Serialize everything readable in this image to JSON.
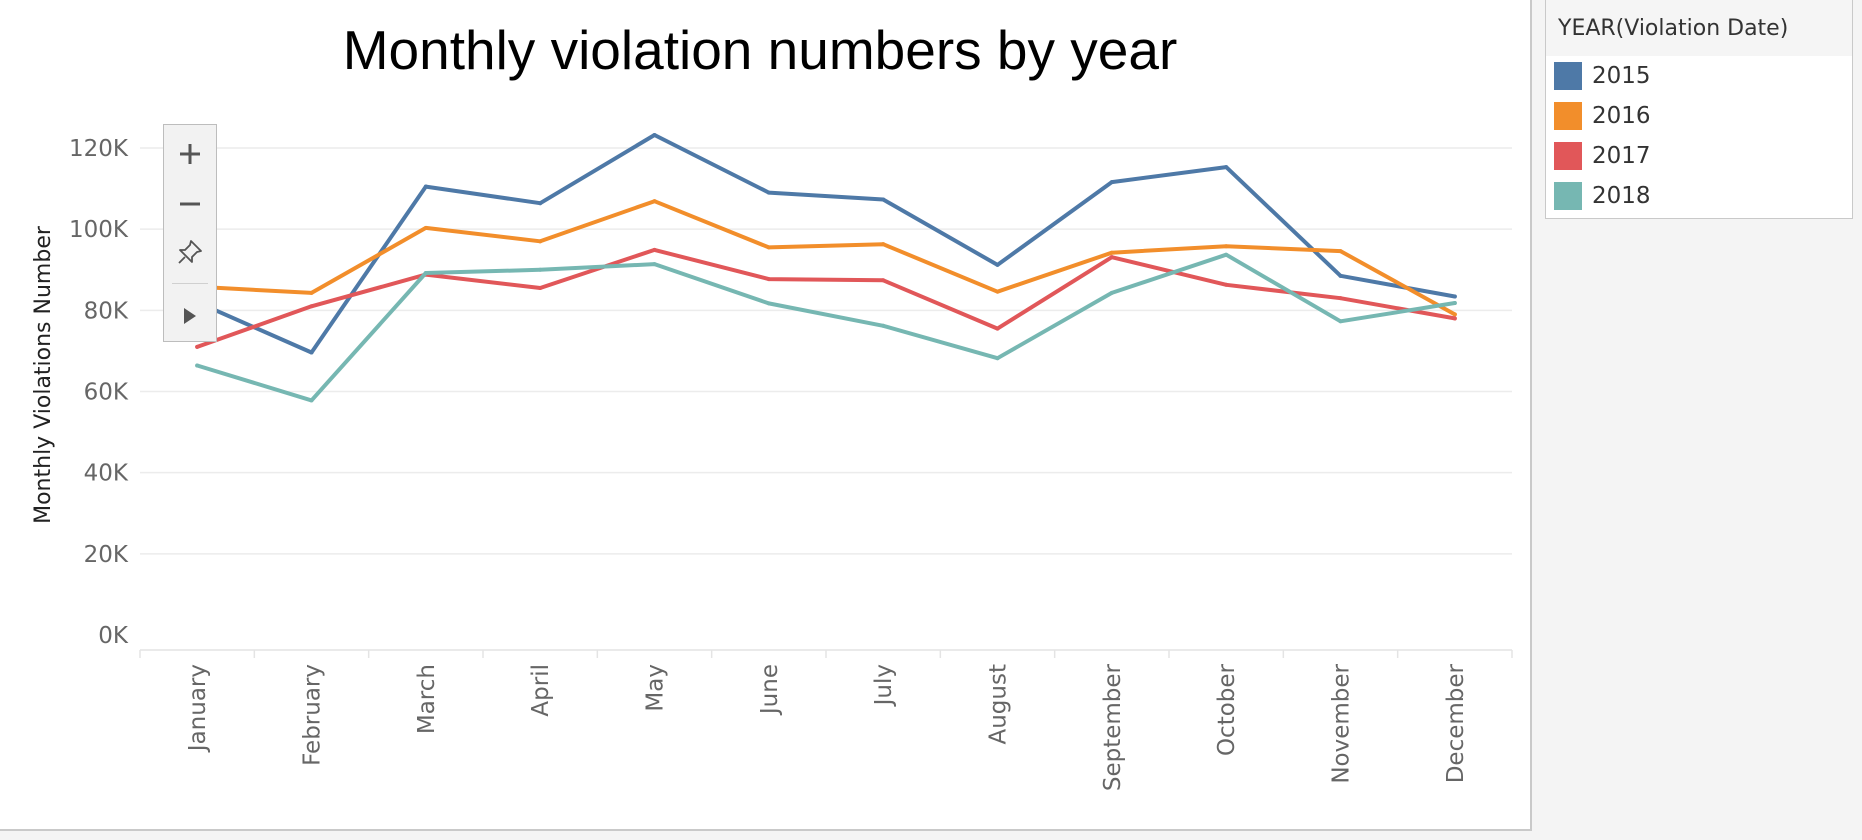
{
  "chart_data": {
    "type": "line",
    "title": "Monthly violation numbers by year",
    "ylabel": "Monthly Violations Number",
    "xlabel": "",
    "categories": [
      "January",
      "February",
      "March",
      "April",
      "May",
      "June",
      "July",
      "August",
      "September",
      "October",
      "November",
      "December"
    ],
    "yticks": [
      {
        "value": 0,
        "label": "0K"
      },
      {
        "value": 20000,
        "label": "20K"
      },
      {
        "value": 40000,
        "label": "40K"
      },
      {
        "value": 60000,
        "label": "60K"
      },
      {
        "value": 80000,
        "label": "80K"
      },
      {
        "value": 100000,
        "label": "100K"
      },
      {
        "value": 120000,
        "label": "120K"
      }
    ],
    "ylim": [
      0,
      130000
    ],
    "grid": true,
    "legend": {
      "title": "YEAR(Violation Date)",
      "position": "top-right"
    },
    "series": [
      {
        "name": "2015",
        "color": "#4e79a7",
        "values": [
          82000,
          69600,
          110500,
          106400,
          123200,
          109000,
          107300,
          91200,
          111600,
          115300,
          88500,
          83400
        ]
      },
      {
        "name": "2016",
        "color": "#f28e2b",
        "values": [
          85800,
          84300,
          100300,
          97000,
          106900,
          95500,
          96300,
          84600,
          94200,
          95800,
          94600,
          79000
        ]
      },
      {
        "name": "2017",
        "color": "#e15759",
        "values": [
          71000,
          81000,
          88800,
          85500,
          94900,
          87700,
          87400,
          75500,
          93100,
          86300,
          83000,
          78000
        ]
      },
      {
        "name": "2018",
        "color": "#76b7b2",
        "values": [
          66400,
          57800,
          89200,
          90000,
          91400,
          81700,
          76200,
          68200,
          84300,
          93700,
          77300,
          81800
        ]
      }
    ]
  }
}
